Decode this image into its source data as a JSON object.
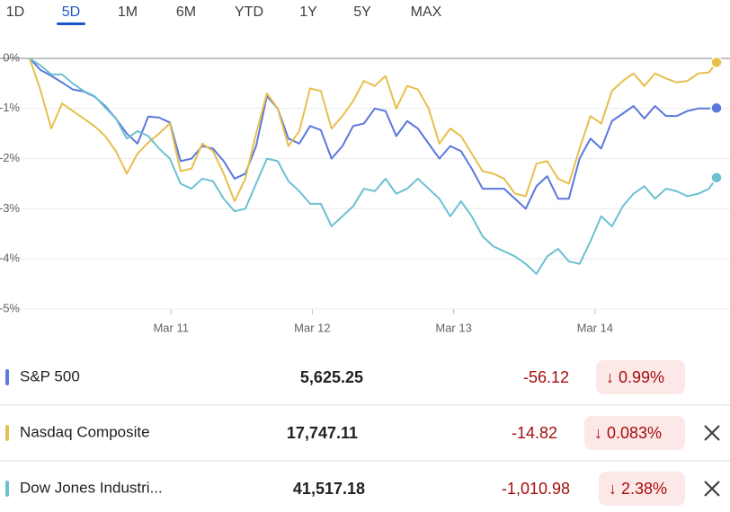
{
  "tabs": [
    "1D",
    "5D",
    "1M",
    "6M",
    "YTD",
    "1Y",
    "5Y",
    "MAX"
  ],
  "active_tab": 1,
  "chart_data": {
    "type": "line",
    "x": [
      0,
      0.076,
      0.153,
      0.229,
      0.305,
      0.382,
      0.458,
      0.534,
      0.61,
      0.687,
      0.763,
      0.839,
      0.916,
      0.992,
      1.068,
      1.145,
      1.221,
      1.297,
      1.373,
      1.45,
      1.526,
      1.602,
      1.679,
      1.755,
      1.831,
      1.908,
      1.984,
      2.06,
      2.136,
      2.213,
      2.289,
      2.365,
      2.442,
      2.518,
      2.594,
      2.671,
      2.747,
      2.823,
      2.899,
      2.976,
      3.052,
      3.128,
      3.205,
      3.281,
      3.357,
      3.434,
      3.51,
      3.586,
      3.662,
      3.739,
      3.815,
      3.891,
      3.968,
      4.044,
      4.12,
      4.197,
      4.273,
      4.349,
      4.425,
      4.502,
      4.578,
      4.654,
      4.731,
      4.807,
      4.86
    ],
    "xlim": [
      0,
      4.86
    ],
    "xticks": [
      {
        "value": 1,
        "label": "Mar 11"
      },
      {
        "value": 2,
        "label": "Mar 12"
      },
      {
        "value": 3,
        "label": "Mar 13"
      },
      {
        "value": 4,
        "label": "Mar 14"
      }
    ],
    "ylim": [
      -5,
      0
    ],
    "yticks": [
      {
        "value": 0,
        "label": "0%"
      },
      {
        "value": -1,
        "label": "-1%"
      },
      {
        "value": -2,
        "label": "-2%"
      },
      {
        "value": -3,
        "label": "-3%"
      },
      {
        "value": -4,
        "label": "-4%"
      },
      {
        "value": -5,
        "label": "-5%"
      }
    ],
    "grid": true,
    "series": [
      {
        "name": "S&P 500",
        "color": "#5b78dc",
        "values": [
          0,
          -0.23,
          -0.35,
          -0.48,
          -0.62,
          -0.66,
          -0.76,
          -0.95,
          -1.2,
          -1.5,
          -1.7,
          -1.16,
          -1.18,
          -1.28,
          -2.05,
          -2.0,
          -1.75,
          -1.8,
          -2.05,
          -2.4,
          -2.3,
          -1.75,
          -0.75,
          -1.0,
          -1.6,
          -1.7,
          -1.35,
          -1.43,
          -2.0,
          -1.75,
          -1.35,
          -1.3,
          -1.0,
          -1.05,
          -1.55,
          -1.25,
          -1.4,
          -1.7,
          -2.0,
          -1.75,
          -1.85,
          -2.2,
          -2.6,
          -2.6,
          -2.6,
          -2.8,
          -3.0,
          -2.55,
          -2.35,
          -2.8,
          -2.8,
          -2.0,
          -1.6,
          -1.8,
          -1.25,
          -1.1,
          -0.95,
          -1.2,
          -0.95,
          -1.15,
          -1.15,
          -1.05,
          -1.0,
          -1.0,
          -0.99
        ]
      },
      {
        "name": "Nasdaq Composite",
        "color": "#e6bf4e",
        "values": [
          0,
          -0.63,
          -1.4,
          -0.9,
          -1.05,
          -1.2,
          -1.35,
          -1.55,
          -1.85,
          -2.3,
          -1.9,
          -1.68,
          -1.5,
          -1.3,
          -2.25,
          -2.2,
          -1.7,
          -1.85,
          -2.3,
          -2.85,
          -2.4,
          -1.5,
          -0.7,
          -1.0,
          -1.75,
          -1.45,
          -0.6,
          -0.65,
          -1.4,
          -1.15,
          -0.85,
          -0.45,
          -0.55,
          -0.35,
          -1.0,
          -0.55,
          -0.62,
          -1.0,
          -1.7,
          -1.4,
          -1.55,
          -1.9,
          -2.25,
          -2.3,
          -2.4,
          -2.7,
          -2.75,
          -2.1,
          -2.05,
          -2.4,
          -2.5,
          -1.8,
          -1.15,
          -1.3,
          -0.65,
          -0.45,
          -0.3,
          -0.55,
          -0.3,
          -0.4,
          -0.48,
          -0.45,
          -0.3,
          -0.28,
          -0.08
        ]
      },
      {
        "name": "Dow Jones Industri...",
        "color": "#6cc0d3",
        "values": [
          0,
          -0.14,
          -0.32,
          -0.32,
          -0.5,
          -0.65,
          -0.75,
          -0.98,
          -1.2,
          -1.6,
          -1.45,
          -1.55,
          -1.8,
          -2.0,
          -2.5,
          -2.6,
          -2.4,
          -2.45,
          -2.8,
          -3.05,
          -3.0,
          -2.5,
          -2.0,
          -2.05,
          -2.45,
          -2.65,
          -2.9,
          -2.9,
          -3.35,
          -3.15,
          -2.95,
          -2.6,
          -2.65,
          -2.4,
          -2.7,
          -2.6,
          -2.4,
          -2.6,
          -2.8,
          -3.15,
          -2.85,
          -3.15,
          -3.55,
          -3.75,
          -3.85,
          -3.95,
          -4.1,
          -4.3,
          -3.95,
          -3.8,
          -4.05,
          -4.1,
          -3.65,
          -3.15,
          -3.35,
          -2.95,
          -2.7,
          -2.55,
          -2.8,
          -2.6,
          -2.65,
          -2.75,
          -2.7,
          -2.6,
          -2.38
        ]
      }
    ]
  },
  "quotes": [
    {
      "price": "5,625.25",
      "change": "-56.12",
      "change_percent": "0.99%"
    },
    {
      "price": "17,747.11",
      "change": "-14.82",
      "change_percent": "0.083%"
    },
    {
      "price": "41,517.18",
      "change": "-1,010.98",
      "change_percent": "2.38%"
    }
  ]
}
